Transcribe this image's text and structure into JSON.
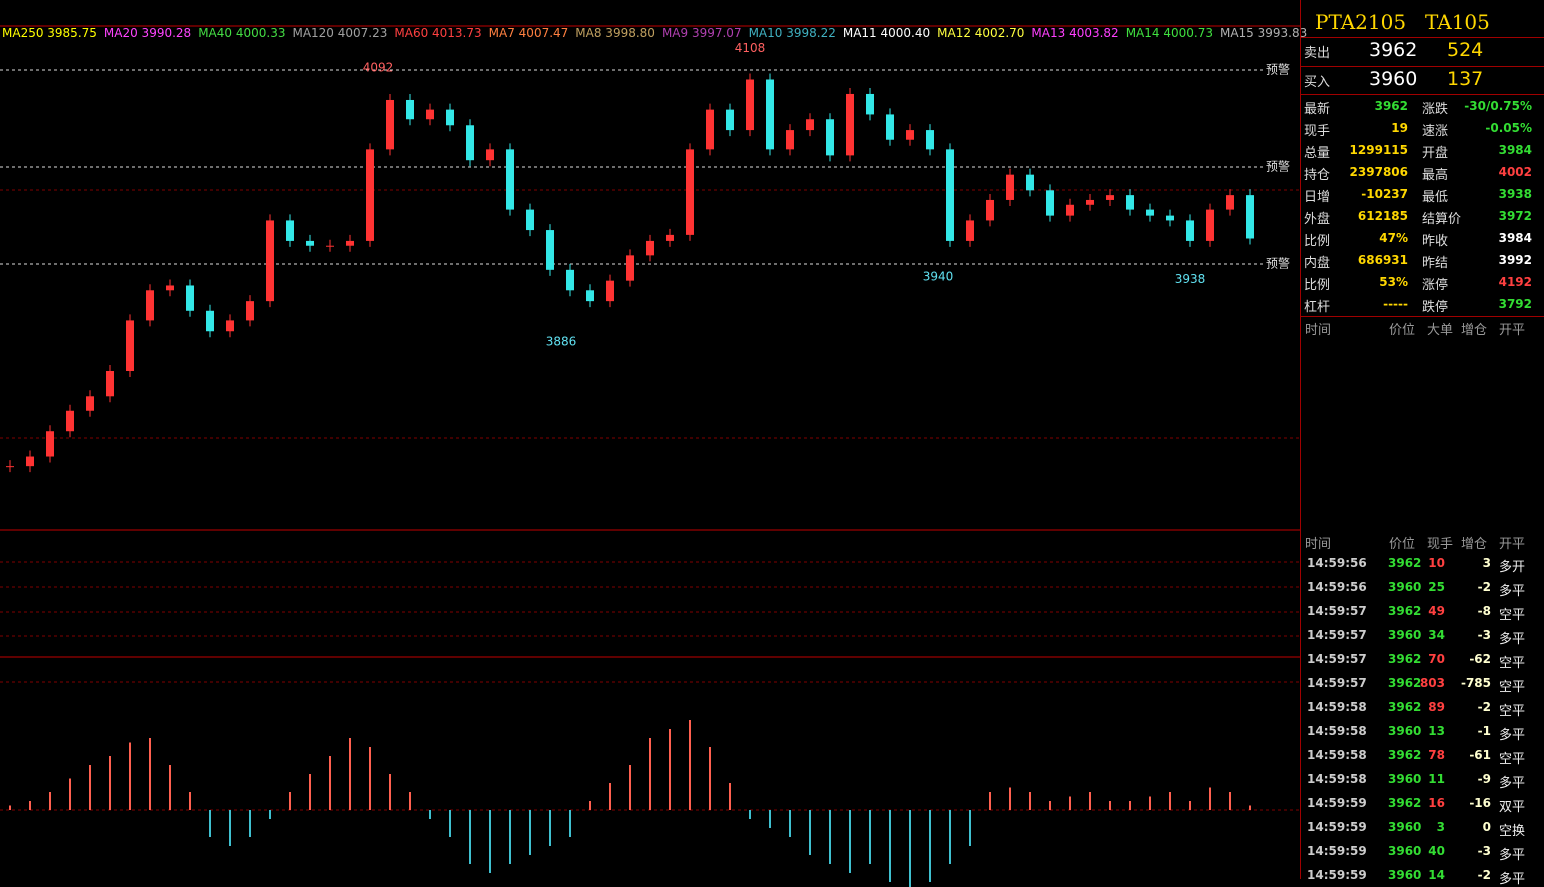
{
  "ma_legend": [
    {
      "label": "MA250 3985.75",
      "color": "#ffff00"
    },
    {
      "label": "MA20 3990.28",
      "color": "#ff44ff"
    },
    {
      "label": "MA40 4000.33",
      "color": "#44dd44"
    },
    {
      "label": "MA120 4007.23",
      "color": "#a0a0a0"
    },
    {
      "label": "MA60 4013.73",
      "color": "#ff4040"
    },
    {
      "label": "MA7 4007.47",
      "color": "#ff8040"
    },
    {
      "label": "MA8 3998.80",
      "color": "#c0a060"
    },
    {
      "label": "MA9 3997.07",
      "color": "#b040b0"
    },
    {
      "label": "MA10 3998.22",
      "color": "#40b0c0"
    },
    {
      "label": "MA11 4000.40",
      "color": "#ffffff"
    },
    {
      "label": "MA12 4002.70",
      "color": "#ffff40"
    },
    {
      "label": "MA13 4003.82",
      "color": "#ff40ff"
    },
    {
      "label": "MA14 4000.73",
      "color": "#40e040"
    },
    {
      "label": "MA15 3993.83",
      "color": "#b0b0b0"
    }
  ],
  "chart_data": {
    "type": "candlestick",
    "closes": [
      3773,
      3781,
      3802,
      3819,
      3831,
      3852,
      3894,
      3919,
      3923,
      3902,
      3885,
      3894,
      3910,
      3977,
      3960,
      3956,
      3956,
      3960,
      4036,
      4077,
      4061,
      4069,
      4056,
      4027,
      4036,
      3986,
      3969,
      3936,
      3919,
      3910,
      3927,
      3948,
      3960,
      3965,
      4036,
      4069,
      4052,
      4094,
      4036,
      4052,
      4061,
      4031,
      4082,
      4065,
      4044,
      4052,
      4036,
      3960,
      3977,
      3994,
      4015,
      4002,
      3981,
      3990,
      3994,
      3998,
      3986,
      3981,
      3977,
      3960,
      3986,
      3998,
      3962
    ],
    "ylim": [
      3720,
      4160
    ],
    "annotations": [
      4092,
      4108,
      3886,
      3940,
      3938
    ],
    "warn_label": "预警",
    "up_color": "#ff3333",
    "down_color": "#33e8e8",
    "macd": [
      0.05,
      0.1,
      0.2,
      0.35,
      0.5,
      0.6,
      0.75,
      0.8,
      0.5,
      0.2,
      -0.3,
      -0.4,
      -0.3,
      -0.1,
      0.2,
      0.4,
      0.6,
      0.8,
      0.7,
      0.4,
      0.2,
      -0.1,
      -0.3,
      -0.6,
      -0.7,
      -0.6,
      -0.5,
      -0.4,
      -0.3,
      0.1,
      0.3,
      0.5,
      0.8,
      0.9,
      1.0,
      0.7,
      0.3,
      -0.1,
      -0.2,
      -0.3,
      -0.5,
      -0.6,
      -0.7,
      -0.6,
      -0.8,
      -0.9,
      -0.8,
      -0.6,
      -0.4,
      0.2,
      0.25,
      0.2,
      0.1,
      0.15,
      0.2,
      0.1,
      0.1,
      0.15,
      0.2,
      0.1,
      0.25,
      0.2,
      0.05
    ]
  },
  "quote": {
    "symbol": "PTA2105",
    "code": "TA105",
    "sell": {
      "label": "卖出",
      "price": 3962,
      "vol": 524
    },
    "buy": {
      "label": "买入",
      "price": 3960,
      "vol": 137
    },
    "rows": [
      [
        "最新",
        3962,
        "涨跌",
        "-30/0.75%"
      ],
      [
        "现手",
        19,
        "速涨",
        "-0.05%"
      ],
      [
        "总量",
        1299115,
        "开盘",
        3984
      ],
      [
        "持仓",
        2397806,
        "最高",
        4002
      ],
      [
        "日增",
        -10237,
        "最低",
        3938
      ],
      [
        "外盘",
        612185,
        "结算价",
        3972
      ],
      [
        "比例",
        "47%",
        "昨收",
        3984
      ],
      [
        "内盘",
        686931,
        "昨结",
        3992
      ],
      [
        "比例",
        "53%",
        "涨停",
        4192
      ],
      [
        "杠杆",
        "-----",
        "跌停",
        3792
      ]
    ],
    "big_header": [
      "时间",
      "价位",
      "大单",
      "增仓",
      "开平"
    ],
    "tick_header": [
      "时间",
      "价位",
      "现手",
      "增仓",
      "开平"
    ],
    "ticks": [
      [
        "14:59:56",
        3962,
        10,
        3,
        "多开"
      ],
      [
        "14:59:56",
        3960,
        25,
        -2,
        "多平"
      ],
      [
        "14:59:57",
        3962,
        49,
        -8,
        "空平"
      ],
      [
        "14:59:57",
        3960,
        34,
        -3,
        "多平"
      ],
      [
        "14:59:57",
        3962,
        70,
        -62,
        "空平"
      ],
      [
        "14:59:57",
        3962,
        803,
        -785,
        "空平"
      ],
      [
        "14:59:58",
        3962,
        89,
        -2,
        "空平"
      ],
      [
        "14:59:58",
        3960,
        13,
        -1,
        "多平"
      ],
      [
        "14:59:58",
        3962,
        78,
        -61,
        "空平"
      ],
      [
        "14:59:58",
        3960,
        11,
        -9,
        "多平"
      ],
      [
        "14:59:59",
        3962,
        16,
        -16,
        "双平"
      ],
      [
        "14:59:59",
        3960,
        3,
        0,
        "空换"
      ],
      [
        "14:59:59",
        3960,
        40,
        -3,
        "多平"
      ],
      [
        "14:59:59",
        3960,
        14,
        -2,
        "多平"
      ]
    ]
  }
}
